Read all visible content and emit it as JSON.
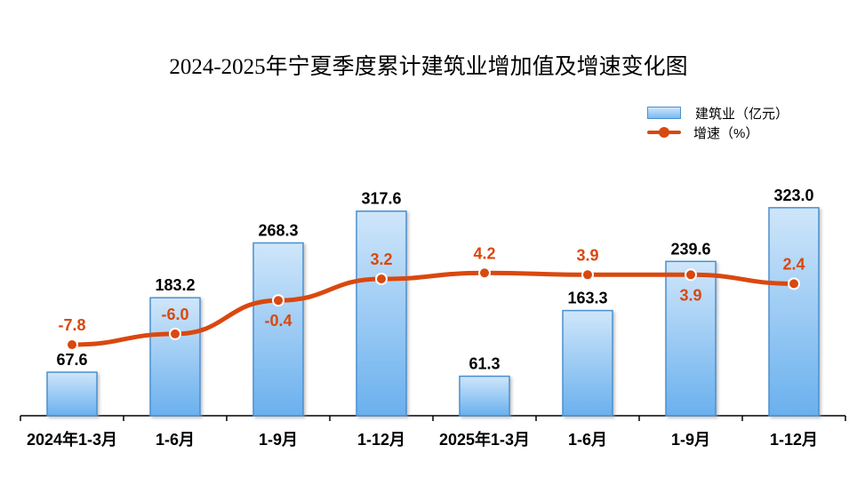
{
  "chart_data": {
    "type": "bar+line",
    "title": "2024-2025年宁夏季度累计建筑业增加值及增速变化图",
    "categories": [
      "2024年1-3月",
      "1-6月",
      "1-9月",
      "1-12月",
      "2025年1-3月",
      "1-6月",
      "1-9月",
      "1-12月"
    ],
    "series": [
      {
        "name": "建筑业（亿元）",
        "type": "bar",
        "values": [
          67.6,
          183.2,
          268.3,
          317.6,
          61.3,
          163.3,
          239.6,
          323.0
        ],
        "color": "#6ab0ee"
      },
      {
        "name": "增速（%）",
        "type": "line",
        "values": [
          -7.8,
          -6.0,
          -0.4,
          3.2,
          4.2,
          3.9,
          3.9,
          2.4
        ],
        "color": "#d9480f",
        "label_positions": [
          "above",
          "above",
          "below",
          "above",
          "above",
          "above",
          "below",
          "above"
        ]
      }
    ],
    "legend_position": "top-right",
    "grid": false
  }
}
